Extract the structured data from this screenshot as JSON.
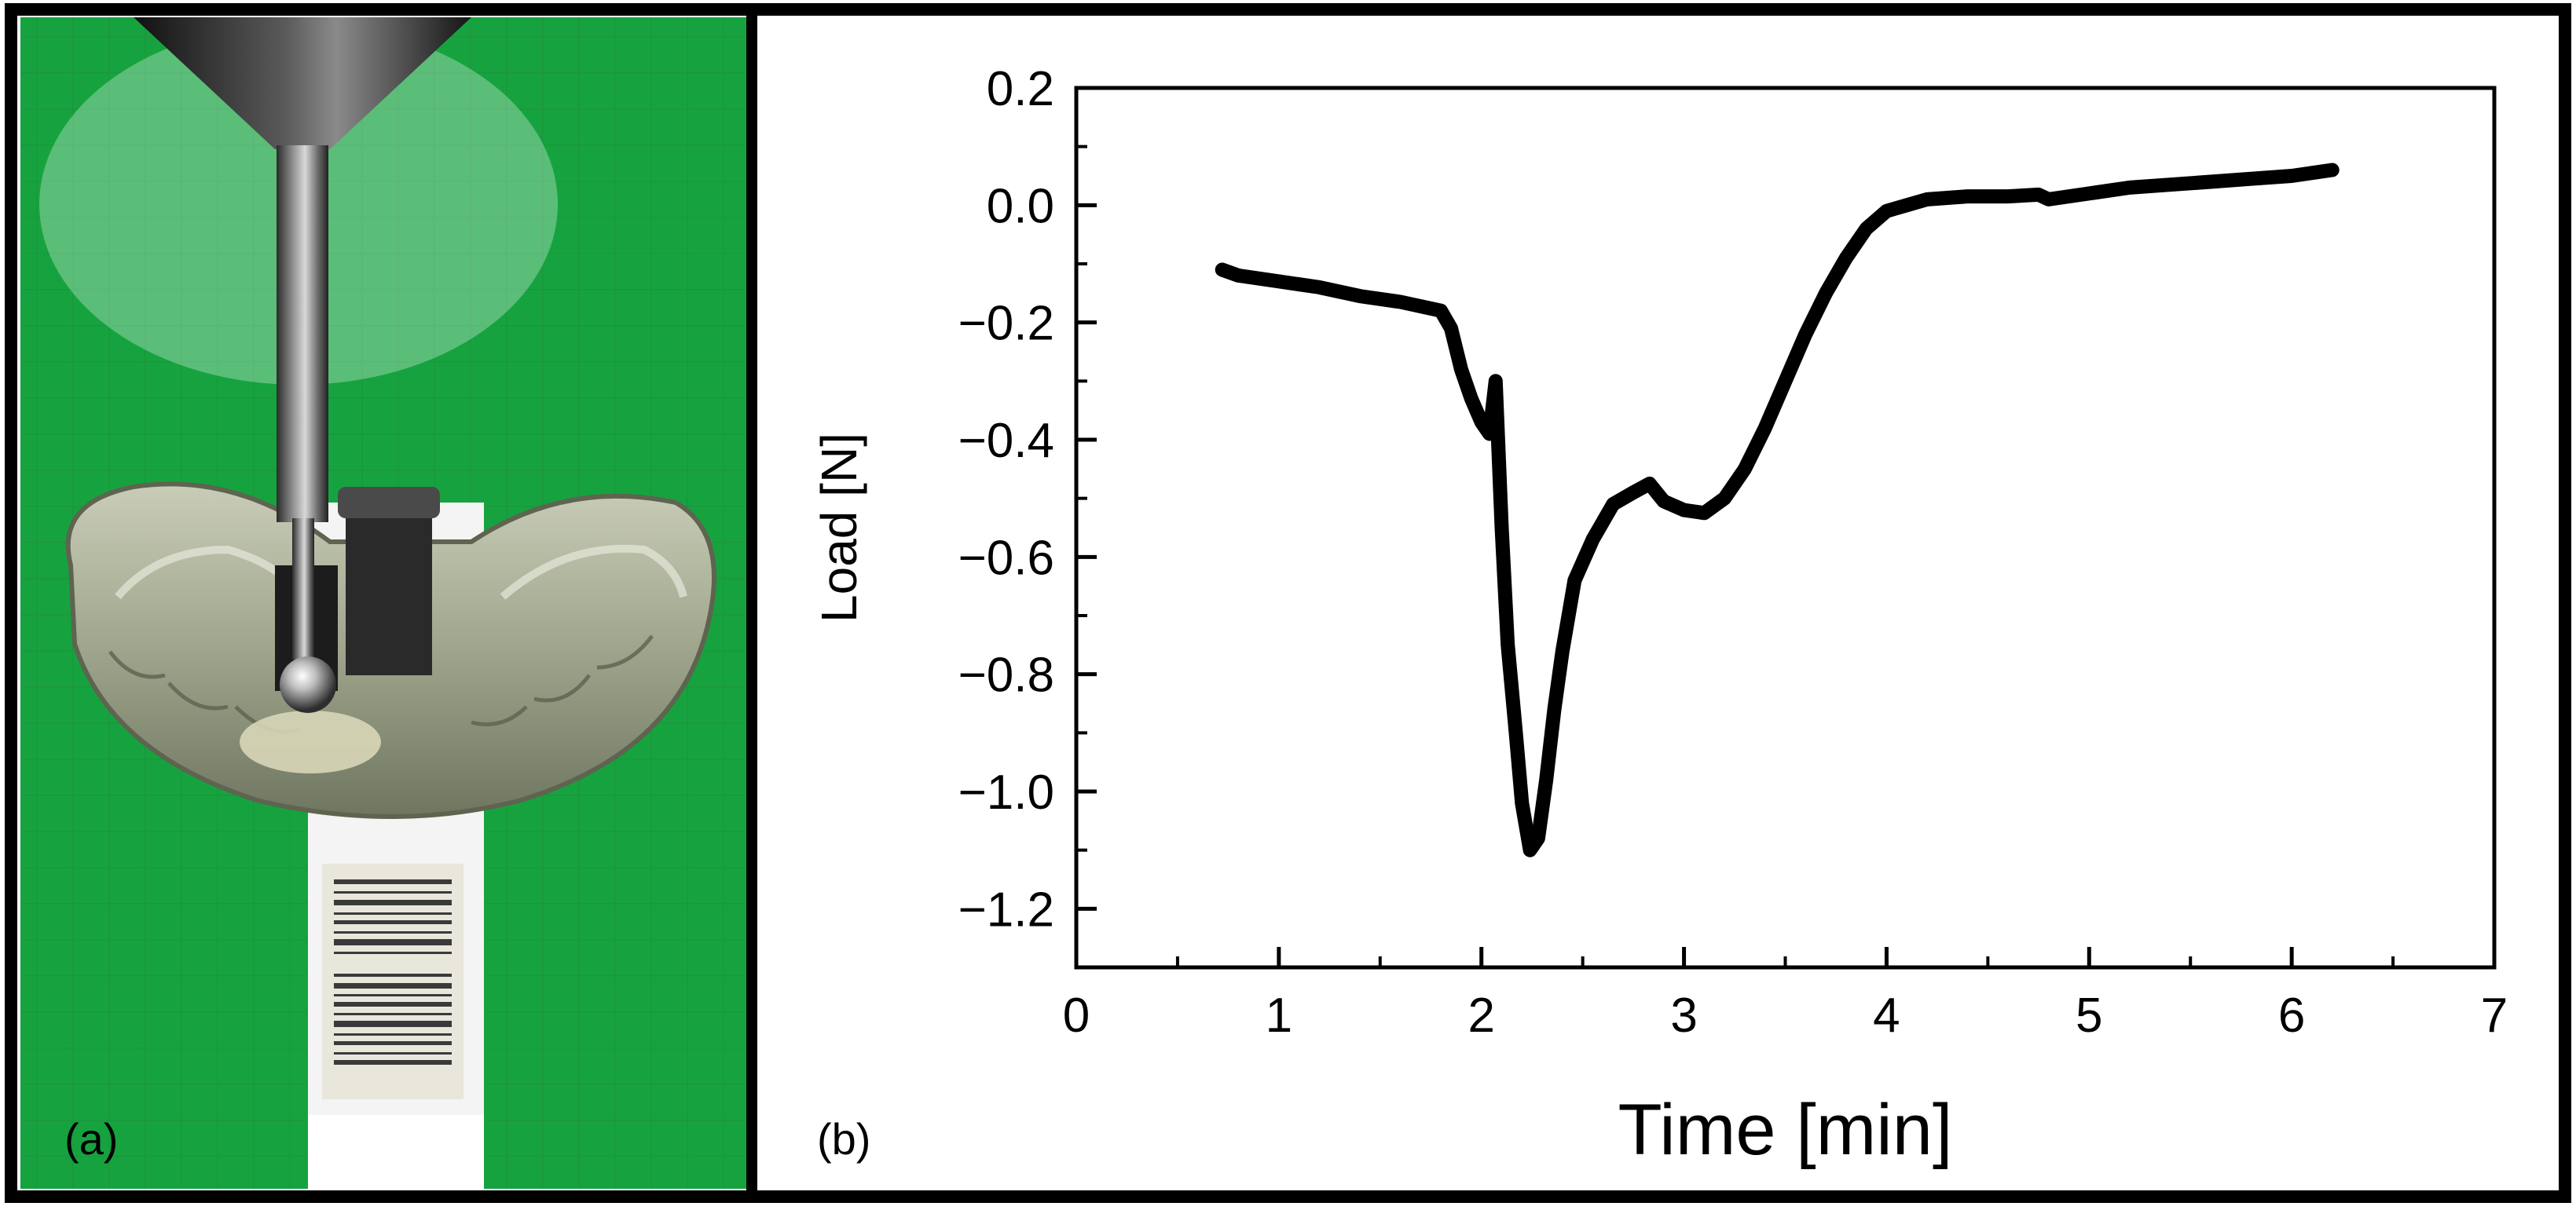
{
  "panel_a": {
    "label": "(a)"
  },
  "panel_b": {
    "label": "(b)"
  },
  "chart_data": {
    "type": "line",
    "title": "",
    "xlabel": "Time [min]",
    "ylabel": "Load [N]",
    "xlim": [
      0,
      7
    ],
    "ylim": [
      -1.3,
      0.2
    ],
    "xticks": [
      0,
      1,
      2,
      3,
      4,
      5,
      6,
      7
    ],
    "xtick_labels": [
      "0",
      "1",
      "2",
      "3",
      "4",
      "5",
      "6",
      "7"
    ],
    "yticks": [
      0.2,
      0.0,
      -0.2,
      -0.4,
      -0.6,
      -0.8,
      -1.0,
      -1.2
    ],
    "ytick_labels": [
      "0.2",
      "0.0",
      "−0.2",
      "−0.4",
      "−0.6",
      "−0.8",
      "−1.0",
      "−1.2"
    ],
    "grid": false,
    "series": [
      {
        "color": "#000000",
        "x": [
          0.72,
          0.8,
          1.0,
          1.2,
          1.4,
          1.6,
          1.8,
          1.85,
          1.9,
          1.95,
          2.0,
          2.04,
          2.07,
          2.1,
          2.13,
          2.17,
          2.2,
          2.24,
          2.28,
          2.32,
          2.36,
          2.4,
          2.46,
          2.55,
          2.65,
          2.75,
          2.83,
          2.9,
          3.0,
          3.1,
          3.2,
          3.3,
          3.4,
          3.5,
          3.6,
          3.7,
          3.8,
          3.9,
          4.0,
          4.1,
          4.2,
          4.4,
          4.6,
          4.75,
          4.8,
          5.0,
          5.2,
          5.4,
          5.6,
          5.8,
          6.0,
          6.2
        ],
        "y": [
          -0.11,
          -0.12,
          -0.13,
          -0.14,
          -0.155,
          -0.165,
          -0.18,
          -0.21,
          -0.28,
          -0.33,
          -0.37,
          -0.39,
          -0.3,
          -0.55,
          -0.75,
          -0.9,
          -1.02,
          -1.1,
          -1.08,
          -0.98,
          -0.86,
          -0.76,
          -0.64,
          -0.57,
          -0.51,
          -0.49,
          -0.475,
          -0.505,
          -0.52,
          -0.525,
          -0.5,
          -0.45,
          -0.38,
          -0.3,
          -0.22,
          -0.15,
          -0.09,
          -0.04,
          -0.01,
          0.0,
          0.01,
          0.015,
          0.015,
          0.018,
          0.01,
          0.02,
          0.03,
          0.035,
          0.04,
          0.045,
          0.05,
          0.06
        ]
      }
    ]
  }
}
